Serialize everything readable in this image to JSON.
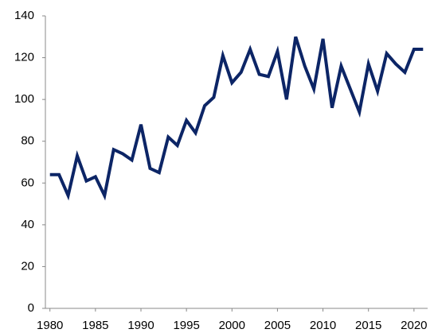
{
  "chart_data": {
    "type": "line",
    "x": [
      1980,
      1981,
      1982,
      1983,
      1984,
      1985,
      1986,
      1987,
      1988,
      1989,
      1990,
      1991,
      1992,
      1993,
      1994,
      1995,
      1996,
      1997,
      1998,
      1999,
      2000,
      2001,
      2002,
      2003,
      2004,
      2005,
      2006,
      2007,
      2008,
      2009,
      2010,
      2011,
      2012,
      2013,
      2014,
      2015,
      2016,
      2017,
      2018,
      2019,
      2020,
      2021
    ],
    "values": [
      64,
      64,
      54,
      73,
      61,
      63,
      54,
      76,
      74,
      71,
      88,
      67,
      65,
      82,
      78,
      90,
      84,
      97,
      101,
      121,
      108,
      113,
      124,
      112,
      111,
      123,
      100,
      130,
      116,
      105,
      129,
      96,
      116,
      105,
      94,
      117,
      104,
      122,
      117,
      113,
      124,
      124
    ],
    "color": "#0c2566",
    "xlim": [
      1979.5,
      2021.5
    ],
    "xticks": [
      1980,
      1985,
      1990,
      1995,
      2000,
      2005,
      2010,
      2015,
      2020
    ],
    "ylim": [
      0,
      140
    ],
    "yticks": [
      0,
      20,
      40,
      60,
      80,
      100,
      120,
      140
    ]
  }
}
